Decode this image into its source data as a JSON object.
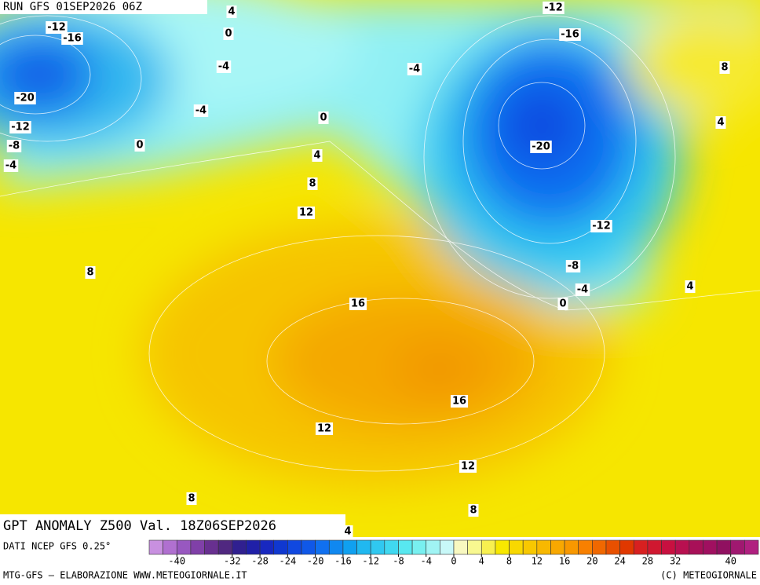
{
  "header": {
    "run": "RUN GFS 01SEP2026 06Z"
  },
  "title": "GPT ANOMALY Z500 Val. 18Z06SEP2026",
  "contour_labels": [
    4,
    -12,
    -12,
    -16,
    0,
    -16,
    -4,
    8,
    -4,
    -20,
    -4,
    0,
    4,
    -12,
    -8,
    0,
    -20,
    4,
    -4,
    8,
    12,
    -12,
    8,
    -8,
    4,
    -4,
    16,
    0,
    16,
    12,
    12,
    8,
    8,
    4
  ],
  "colorbar": {
    "lim": [
      -44,
      44
    ],
    "ticks": [
      -40,
      -32,
      -28,
      -24,
      -20,
      -16,
      -12,
      -8,
      -4,
      0,
      4,
      8,
      12,
      16,
      20,
      24,
      28,
      32,
      40
    ],
    "colors": [
      "#c890e0",
      "#b070d0",
      "#9858c0",
      "#8040a8",
      "#683090",
      "#502880",
      "#302090",
      "#2020a8",
      "#1828c0",
      "#1038d0",
      "#1048e0",
      "#1058e8",
      "#1070f0",
      "#1088f0",
      "#10a0f0",
      "#20b8f0",
      "#30c8f0",
      "#40d8f0",
      "#58e8f0",
      "#78f0f0",
      "#a0f4f4",
      "#c8f8f8",
      "#f8f8c0",
      "#f8f890",
      "#f8f050",
      "#f8e800",
      "#f8d800",
      "#f8c800",
      "#f8b800",
      "#f8a800",
      "#f89800",
      "#f88000",
      "#f06800",
      "#e85000",
      "#e03800",
      "#d82020",
      "#d01830",
      "#c81040",
      "#b81050",
      "#a81058",
      "#a01060",
      "#901060",
      "#a01870",
      "#b02080"
    ]
  },
  "footer": {
    "source": "DATI NCEP GFS 0.25°",
    "credit": "MTG-GFS — ELABORAZIONE WWW.METEOGIORNALE.IT",
    "copyright": "(C) METEOGIORNALE"
  }
}
